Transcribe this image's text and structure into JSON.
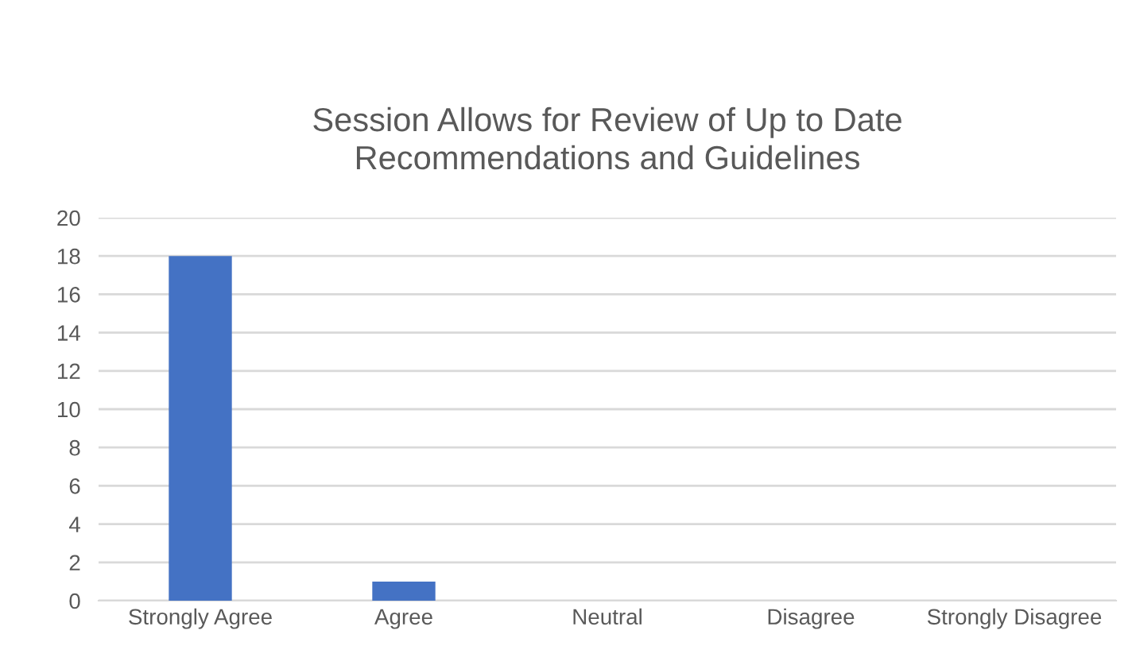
{
  "chart_data": {
    "type": "bar",
    "title": "Session Allows for Review of Up to Date\nRecommendations and Guidelines",
    "categories": [
      "Strongly Agree",
      "Agree",
      "Neutral",
      "Disagree",
      "Strongly Disagree"
    ],
    "values": [
      18,
      1,
      0,
      0,
      0
    ],
    "color": "#4472c4",
    "ylim": [
      0,
      20
    ],
    "yticks": [
      0,
      2,
      4,
      6,
      8,
      10,
      12,
      14,
      16,
      18,
      20
    ],
    "grid": "y",
    "legend": false
  }
}
